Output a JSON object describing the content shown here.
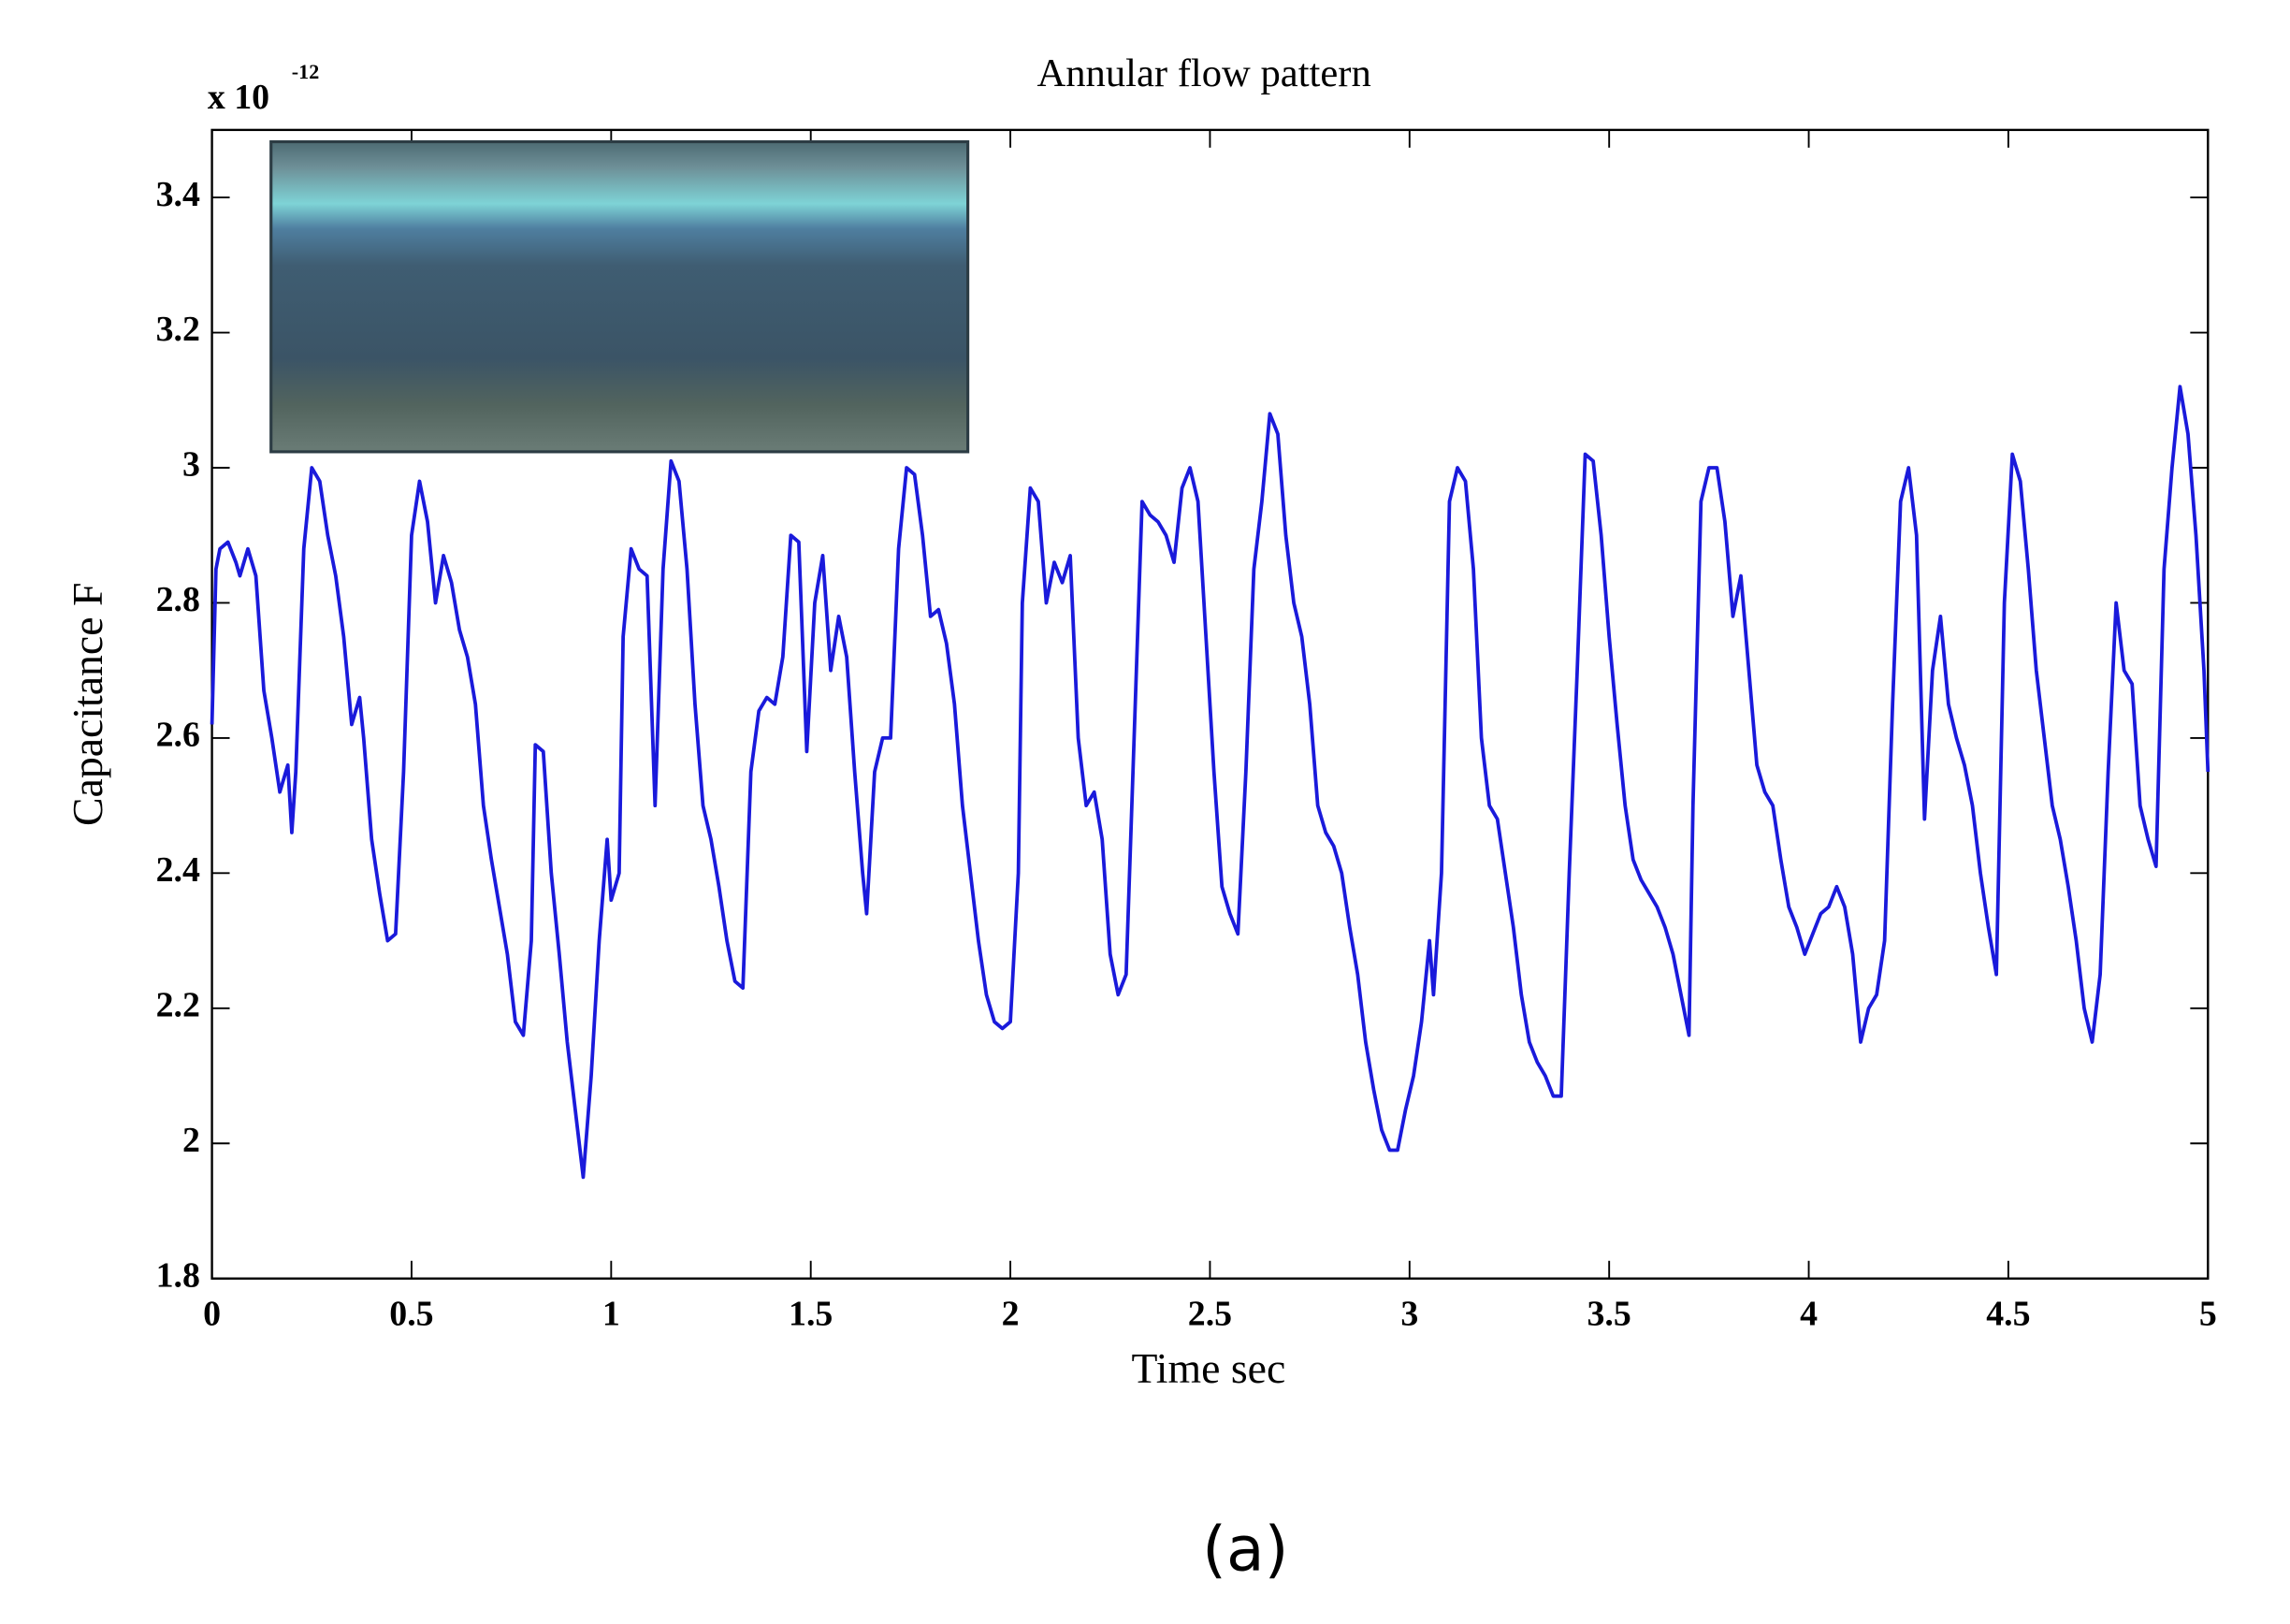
{
  "chart_data": {
    "type": "line",
    "title": "Annular flow pattern",
    "x_label": "Time sec",
    "y_label": "Capacitance F",
    "scale_label": "x 10",
    "scale_exponent": "-12",
    "caption": "(a)",
    "x": [
      0,
      0.01,
      0.02,
      0.04,
      0.06,
      0.07,
      0.09,
      0.11,
      0.13,
      0.15,
      0.17,
      0.19,
      0.2,
      0.21,
      0.23,
      0.25,
      0.27,
      0.29,
      0.31,
      0.33,
      0.35,
      0.37,
      0.38,
      0.4,
      0.42,
      0.44,
      0.46,
      0.48,
      0.5,
      0.52,
      0.54,
      0.56,
      0.58,
      0.6,
      0.62,
      0.64,
      0.66,
      0.68,
      0.7,
      0.72,
      0.74,
      0.76,
      0.78,
      0.8,
      0.81,
      0.83,
      0.85,
      0.87,
      0.89,
      0.91,
      0.93,
      0.95,
      0.97,
      0.99,
      1,
      1.02,
      1.03,
      1.05,
      1.07,
      1.09,
      1.11,
      1.13,
      1.15,
      1.17,
      1.19,
      1.21,
      1.23,
      1.25,
      1.27,
      1.29,
      1.31,
      1.33,
      1.35,
      1.37,
      1.39,
      1.41,
      1.43,
      1.45,
      1.47,
      1.49,
      1.51,
      1.53,
      1.55,
      1.57,
      1.59,
      1.61,
      1.63,
      1.64,
      1.66,
      1.68,
      1.7,
      1.72,
      1.74,
      1.76,
      1.78,
      1.8,
      1.82,
      1.84,
      1.86,
      1.88,
      1.9,
      1.92,
      1.94,
      1.96,
      1.98,
      2,
      2.02,
      2.03,
      2.05,
      2.07,
      2.09,
      2.11,
      2.13,
      2.15,
      2.17,
      2.19,
      2.21,
      2.23,
      2.25,
      2.27,
      2.29,
      2.31,
      2.33,
      2.35,
      2.37,
      2.39,
      2.41,
      2.43,
      2.45,
      2.47,
      2.49,
      2.51,
      2.53,
      2.55,
      2.57,
      2.59,
      2.61,
      2.63,
      2.65,
      2.67,
      2.69,
      2.71,
      2.73,
      2.75,
      2.77,
      2.79,
      2.81,
      2.83,
      2.85,
      2.87,
      2.89,
      2.91,
      2.93,
      2.95,
      2.97,
      2.99,
      3.01,
      3.03,
      3.05,
      3.06,
      3.08,
      3.1,
      3.12,
      3.14,
      3.16,
      3.18,
      3.2,
      3.22,
      3.24,
      3.26,
      3.28,
      3.3,
      3.32,
      3.34,
      3.36,
      3.38,
      3.4,
      3.42,
      3.44,
      3.46,
      3.48,
      3.5,
      3.52,
      3.54,
      3.56,
      3.58,
      3.6,
      3.62,
      3.64,
      3.66,
      3.68,
      3.7,
      3.71,
      3.73,
      3.75,
      3.77,
      3.79,
      3.81,
      3.83,
      3.85,
      3.87,
      3.89,
      3.91,
      3.93,
      3.95,
      3.97,
      3.99,
      4.01,
      4.03,
      4.05,
      4.07,
      4.09,
      4.11,
      4.13,
      4.15,
      4.17,
      4.19,
      4.21,
      4.23,
      4.25,
      4.27,
      4.29,
      4.31,
      4.33,
      4.35,
      4.37,
      4.39,
      4.41,
      4.43,
      4.45,
      4.47,
      4.49,
      4.51,
      4.53,
      4.55,
      4.57,
      4.59,
      4.61,
      4.63,
      4.65,
      4.67,
      4.69,
      4.71,
      4.73,
      4.75,
      4.77,
      4.79,
      4.81,
      4.83,
      4.85,
      4.87,
      4.89,
      4.91,
      4.93,
      4.95,
      4.97,
      4.99,
      5
    ],
    "series": [
      {
        "color": "#1a1adb",
        "values": [
          2.62,
          2.85,
          2.88,
          2.89,
          2.86,
          2.84,
          2.88,
          2.84,
          2.67,
          2.6,
          2.52,
          2.56,
          2.46,
          2.55,
          2.88,
          3,
          2.98,
          2.9,
          2.84,
          2.75,
          2.62,
          2.66,
          2.6,
          2.45,
          2.37,
          2.3,
          2.31,
          2.55,
          2.9,
          2.98,
          2.92,
          2.8,
          2.87,
          2.83,
          2.76,
          2.72,
          2.65,
          2.5,
          2.42,
          2.35,
          2.28,
          2.18,
          2.16,
          2.3,
          2.59,
          2.58,
          2.4,
          2.28,
          2.15,
          2.05,
          1.95,
          2.1,
          2.3,
          2.45,
          2.36,
          2.4,
          2.75,
          2.88,
          2.85,
          2.84,
          2.5,
          2.85,
          3.01,
          2.98,
          2.85,
          2.65,
          2.5,
          2.45,
          2.38,
          2.3,
          2.24,
          2.23,
          2.55,
          2.64,
          2.66,
          2.65,
          2.72,
          2.9,
          2.89,
          2.58,
          2.8,
          2.87,
          2.7,
          2.78,
          2.72,
          2.55,
          2.4,
          2.34,
          2.55,
          2.6,
          2.6,
          2.88,
          3,
          2.99,
          2.9,
          2.78,
          2.79,
          2.74,
          2.65,
          2.5,
          2.4,
          2.3,
          2.22,
          2.18,
          2.17,
          2.18,
          2.4,
          2.8,
          2.97,
          2.95,
          2.8,
          2.86,
          2.83,
          2.87,
          2.6,
          2.5,
          2.52,
          2.45,
          2.28,
          2.22,
          2.25,
          2.6,
          2.95,
          2.93,
          2.92,
          2.9,
          2.86,
          2.97,
          3,
          2.95,
          2.75,
          2.55,
          2.38,
          2.34,
          2.31,
          2.55,
          2.85,
          2.95,
          3.08,
          3.05,
          2.9,
          2.8,
          2.75,
          2.65,
          2.5,
          2.46,
          2.44,
          2.4,
          2.32,
          2.25,
          2.15,
          2.08,
          2.02,
          1.99,
          1.99,
          2.05,
          2.1,
          2.18,
          2.3,
          2.22,
          2.4,
          2.95,
          3,
          2.98,
          2.85,
          2.6,
          2.5,
          2.48,
          2.4,
          2.32,
          2.22,
          2.15,
          2.12,
          2.1,
          2.07,
          2.07,
          2.4,
          2.7,
          3.02,
          3.01,
          2.9,
          2.75,
          2.62,
          2.5,
          2.42,
          2.39,
          2.37,
          2.35,
          2.32,
          2.28,
          2.22,
          2.16,
          2.5,
          2.95,
          3,
          3,
          2.92,
          2.78,
          2.84,
          2.7,
          2.56,
          2.52,
          2.5,
          2.42,
          2.35,
          2.32,
          2.28,
          2.31,
          2.34,
          2.35,
          2.38,
          2.35,
          2.28,
          2.15,
          2.2,
          2.22,
          2.3,
          2.65,
          2.95,
          3,
          2.9,
          2.48,
          2.7,
          2.78,
          2.65,
          2.6,
          2.56,
          2.5,
          2.4,
          2.32,
          2.25,
          2.8,
          3.02,
          2.98,
          2.85,
          2.7,
          2.6,
          2.5,
          2.45,
          2.38,
          2.3,
          2.2,
          2.15,
          2.25,
          2.55,
          2.8,
          2.7,
          2.68,
          2.5,
          2.45,
          2.41,
          2.85,
          3,
          3.12,
          3.05,
          2.9,
          2.7,
          2.55
        ]
      }
    ],
    "xlim": [
      0,
      5
    ],
    "xticks": [
      0,
      0.5,
      1,
      1.5,
      2,
      2.5,
      3,
      3.5,
      4,
      4.5,
      5
    ],
    "ylim": [
      1.8,
      3.5
    ],
    "yticks": [
      1.8,
      2,
      2.2,
      2.4,
      2.6,
      2.8,
      3,
      3.2,
      3.4
    ]
  }
}
